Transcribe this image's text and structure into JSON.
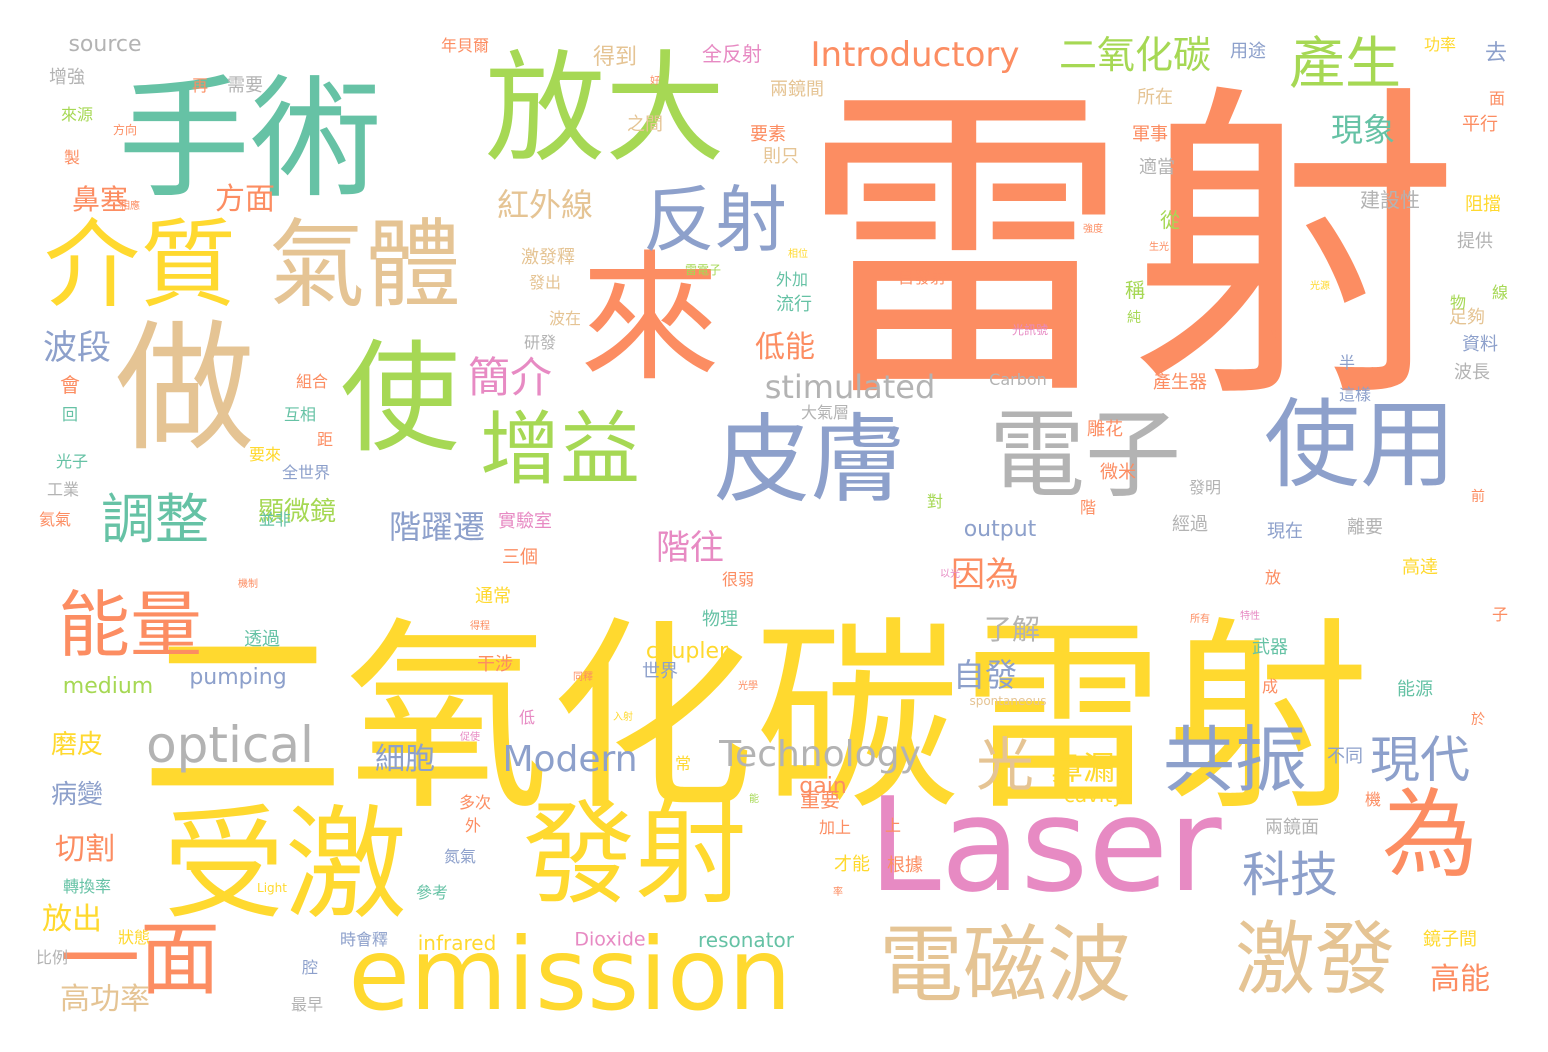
{
  "palette": {
    "orange": "#fc8d62",
    "teal": "#66c2a5",
    "green": "#a6d854",
    "blue": "#8da0cb",
    "pink": "#e78ac3",
    "yellow": "#ffd92f",
    "tan": "#e5c494",
    "gray": "#b3b3b3"
  },
  "words": [
    {
      "text": "雷射",
      "color": "orange",
      "size": 5,
      "v": false
    },
    {
      "text": "二氧化碳雷射",
      "color": "yellow",
      "size": 5,
      "v": false
    },
    {
      "text": "手術",
      "color": "teal",
      "size": 4,
      "v": false
    },
    {
      "text": "放大",
      "color": "green",
      "size": 4,
      "v": false
    },
    {
      "text": "做",
      "color": "tan",
      "size": 4,
      "v": false
    },
    {
      "text": "來",
      "color": "orange",
      "size": 4,
      "v": false
    },
    {
      "text": "使",
      "color": "green",
      "size": 4,
      "v": false
    },
    {
      "text": "介質",
      "color": "yellow",
      "size": 3,
      "v": false
    },
    {
      "text": "氣體",
      "color": "tan",
      "size": 3,
      "v": false
    },
    {
      "text": "受激",
      "color": "yellow",
      "size": 4,
      "v": false
    },
    {
      "text": "發射",
      "color": "yellow",
      "size": 4,
      "v": false
    },
    {
      "text": "皮膚",
      "color": "blue",
      "size": 3,
      "v": false
    },
    {
      "text": "電子",
      "color": "gray",
      "size": 3,
      "v": false
    },
    {
      "text": "使用",
      "color": "blue",
      "size": 3,
      "v": false
    },
    {
      "text": "Laser",
      "color": "pink",
      "size": 4,
      "v": false
    },
    {
      "text": "為",
      "color": "orange",
      "size": 3,
      "v": false
    },
    {
      "text": "emission",
      "color": "yellow",
      "size": 3,
      "v": false
    },
    {
      "text": "電磁波",
      "color": "tan",
      "size": 3,
      "v": false
    },
    {
      "text": "激發",
      "color": "tan",
      "size": 3,
      "v": false
    },
    {
      "text": "一面",
      "color": "orange",
      "size": 3,
      "v": false
    },
    {
      "text": "增益",
      "color": "green",
      "size": 3,
      "v": false
    },
    {
      "text": "能量",
      "color": "orange",
      "size": 3,
      "v": false
    },
    {
      "text": "反射",
      "color": "blue",
      "size": 3,
      "v": false
    },
    {
      "text": "共振",
      "color": "blue",
      "size": 3,
      "v": false
    },
    {
      "text": "optical",
      "color": "gray",
      "size": 2,
      "v": false
    },
    {
      "text": "光",
      "color": "tan",
      "size": 2,
      "v": false
    },
    {
      "text": "現代",
      "color": "blue",
      "size": 2,
      "v": false
    },
    {
      "text": "科技",
      "color": "blue",
      "size": 2,
      "v": false
    },
    {
      "text": "產生",
      "color": "green",
      "size": 2,
      "v": false
    },
    {
      "text": "調整",
      "color": "teal",
      "size": 2,
      "v": false
    },
    {
      "text": "Introductory",
      "color": "orange",
      "size": 1,
      "v": false
    },
    {
      "text": "二氧化碳",
      "color": "green",
      "size": 1,
      "v": false
    },
    {
      "text": "Modern",
      "color": "blue",
      "size": 1,
      "v": false
    },
    {
      "text": "Technology",
      "color": "gray",
      "size": 1,
      "v": false
    },
    {
      "text": "stimulated",
      "color": "gray",
      "size": 1,
      "v": false
    },
    {
      "text": "簡介",
      "color": "pink",
      "size": 1,
      "v": false
    },
    {
      "text": "紅外線",
      "color": "tan",
      "size": 1,
      "v": false
    },
    {
      "text": "方面",
      "color": "orange",
      "size": 1,
      "v": false
    },
    {
      "text": "鼻塞",
      "color": "orange",
      "size": 1,
      "v": false
    },
    {
      "text": "波段",
      "color": "blue",
      "size": 1,
      "v": false
    },
    {
      "text": "低能",
      "color": "orange",
      "size": 1,
      "v": false
    },
    {
      "text": "階躍遷",
      "color": "blue",
      "size": 1,
      "v": false
    },
    {
      "text": "階往",
      "color": "pink",
      "size": 1,
      "v": false
    },
    {
      "text": "因為",
      "color": "orange",
      "size": 1,
      "v": false
    },
    {
      "text": "自發",
      "color": "blue",
      "size": 1,
      "v": false
    },
    {
      "text": "了解",
      "color": "gray",
      "size": 1,
      "v": false
    },
    {
      "text": "鼻漏",
      "color": "yellow",
      "size": 1,
      "v": false
    },
    {
      "text": "現象",
      "color": "teal",
      "size": 1,
      "v": false
    },
    {
      "text": "細胞",
      "color": "blue",
      "size": 1,
      "v": false
    },
    {
      "text": "顯微鏡",
      "color": "green",
      "size": 1,
      "v": false
    },
    {
      "text": "磨皮",
      "color": "yellow",
      "size": 1,
      "v": false
    },
    {
      "text": "病變",
      "color": "blue",
      "size": 1,
      "v": false
    },
    {
      "text": "切割",
      "color": "orange",
      "size": 1,
      "v": false
    },
    {
      "text": "放出",
      "color": "yellow",
      "size": 1,
      "v": false
    },
    {
      "text": "高功率",
      "color": "tan",
      "size": 1,
      "v": false
    },
    {
      "text": "高能",
      "color": "orange",
      "size": 1,
      "v": false
    },
    {
      "text": "source",
      "color": "gray",
      "size": 0,
      "v": false
    },
    {
      "text": "output",
      "color": "blue",
      "size": 0,
      "v": false
    },
    {
      "text": "pumping",
      "color": "blue",
      "size": 0,
      "v": false
    },
    {
      "text": "medium",
      "color": "green",
      "size": 0,
      "v": false
    },
    {
      "text": "coupler",
      "color": "yellow",
      "size": 0,
      "v": false
    },
    {
      "text": "gain",
      "color": "orange",
      "size": 0,
      "v": false
    },
    {
      "text": "cavity",
      "color": "yellow",
      "size": 0,
      "v": false
    },
    {
      "text": "infrared",
      "color": "yellow",
      "size": 0,
      "v": false
    },
    {
      "text": "Dioxide",
      "color": "pink",
      "size": 0,
      "v": false
    },
    {
      "text": "resonator",
      "color": "teal",
      "size": 0,
      "v": false
    },
    {
      "text": "Carbon",
      "color": "gray",
      "size": 0,
      "v": false
    },
    {
      "text": "得到",
      "color": "tan",
      "size": 0,
      "v": false
    },
    {
      "text": "全反射",
      "color": "pink",
      "size": 0,
      "v": false
    },
    {
      "text": "兩鏡間",
      "color": "tan",
      "size": 0,
      "v": false
    },
    {
      "text": "所在",
      "color": "tan",
      "size": 0,
      "v": false
    },
    {
      "text": "軍事",
      "color": "orange",
      "size": 0,
      "v": false
    },
    {
      "text": "適當",
      "color": "gray",
      "size": 0,
      "v": false
    },
    {
      "text": "建設性",
      "color": "gray",
      "size": 0,
      "v": false
    },
    {
      "text": "阻擋",
      "color": "yellow",
      "size": 0,
      "v": false
    },
    {
      "text": "提供",
      "color": "gray",
      "size": 0,
      "v": false
    },
    {
      "text": "足夠",
      "color": "tan",
      "size": 0,
      "v": false
    },
    {
      "text": "資料",
      "color": "blue",
      "size": 0,
      "v": false
    },
    {
      "text": "波長",
      "color": "gray",
      "size": 0,
      "v": false
    },
    {
      "text": "產生器",
      "color": "orange",
      "size": 0,
      "v": false
    },
    {
      "text": "雕花",
      "color": "orange",
      "size": 0,
      "v": false
    },
    {
      "text": "微米",
      "color": "orange",
      "size": 0,
      "v": false
    },
    {
      "text": "發明",
      "color": "gray",
      "size": 0,
      "v": false
    },
    {
      "text": "經過",
      "color": "gray",
      "size": 0,
      "v": false
    },
    {
      "text": "現在",
      "color": "blue",
      "size": 0,
      "v": false
    },
    {
      "text": "離要",
      "color": "gray",
      "size": 0,
      "v": false
    },
    {
      "text": "高達",
      "color": "yellow",
      "size": 0,
      "v": false
    },
    {
      "text": "武器",
      "color": "teal",
      "size": 0,
      "v": false
    },
    {
      "text": "能源",
      "color": "teal",
      "size": 0,
      "v": false
    },
    {
      "text": "不同",
      "color": "blue",
      "size": 0,
      "v": false
    },
    {
      "text": "兩鏡面",
      "color": "gray",
      "size": 0,
      "v": false
    },
    {
      "text": "鏡子間",
      "color": "yellow",
      "size": 0,
      "v": false
    },
    {
      "text": "用途",
      "color": "blue",
      "size": 0,
      "v": false
    },
    {
      "text": "功率",
      "color": "yellow",
      "size": 0,
      "v": false
    },
    {
      "text": "平行",
      "color": "orange",
      "size": 0,
      "v": false
    },
    {
      "text": "要素",
      "color": "orange",
      "size": 0,
      "v": false
    },
    {
      "text": "則只",
      "color": "tan",
      "size": 0,
      "v": false
    },
    {
      "text": "之間",
      "color": "tan",
      "size": 0,
      "v": false
    },
    {
      "text": "外加",
      "color": "teal",
      "size": 0,
      "v": false
    },
    {
      "text": "流行",
      "color": "teal",
      "size": 0,
      "v": false
    },
    {
      "text": "大氣層",
      "color": "gray",
      "size": 0,
      "v": false
    },
    {
      "text": "全世界",
      "color": "blue",
      "size": 0,
      "v": false
    },
    {
      "text": "三個",
      "color": "orange",
      "size": 0,
      "v": false
    },
    {
      "text": "通常",
      "color": "yellow",
      "size": 0,
      "v": false
    },
    {
      "text": "透過",
      "color": "teal",
      "size": 0,
      "v": false
    },
    {
      "text": "干涉",
      "color": "orange",
      "size": 0,
      "v": false
    },
    {
      "text": "很弱",
      "color": "orange",
      "size": 0,
      "v": false
    },
    {
      "text": "物理",
      "color": "teal",
      "size": 0,
      "v": false
    },
    {
      "text": "世界",
      "color": "blue",
      "size": 0,
      "v": false
    },
    {
      "text": "實驗室",
      "color": "pink",
      "size": 0,
      "v": false
    },
    {
      "text": "激發釋",
      "color": "tan",
      "size": 0,
      "v": false
    },
    {
      "text": "發出",
      "color": "tan",
      "size": 0,
      "v": false
    },
    {
      "text": "波在",
      "color": "tan",
      "size": 0,
      "v": false
    },
    {
      "text": "研發",
      "color": "gray",
      "size": 0,
      "v": false
    },
    {
      "text": "組合",
      "color": "orange",
      "size": 0,
      "v": false
    },
    {
      "text": "互相",
      "color": "teal",
      "size": 0,
      "v": false
    },
    {
      "text": "要來",
      "color": "yellow",
      "size": 0,
      "v": false
    },
    {
      "text": "光子",
      "color": "teal",
      "size": 0,
      "v": false
    },
    {
      "text": "工業",
      "color": "gray",
      "size": 0,
      "v": false
    },
    {
      "text": "氦氣",
      "color": "orange",
      "size": 0,
      "v": false
    },
    {
      "text": "並非",
      "color": "teal",
      "size": 0,
      "v": false
    },
    {
      "text": "比例",
      "color": "gray",
      "size": 0,
      "v": false
    },
    {
      "text": "狀態",
      "color": "yellow",
      "size": 0,
      "v": false
    },
    {
      "text": "轉換率",
      "color": "teal",
      "size": 0,
      "v": false
    },
    {
      "text": "時會釋",
      "color": "blue",
      "size": 0,
      "v": false
    },
    {
      "text": "參考",
      "color": "teal",
      "size": 0,
      "v": false
    },
    {
      "text": "氮氣",
      "color": "blue",
      "size": 0,
      "v": false
    },
    {
      "text": "多次",
      "color": "orange",
      "size": 0,
      "v": false
    },
    {
      "text": "重要",
      "color": "orange",
      "size": 0,
      "v": false
    },
    {
      "text": "加上",
      "color": "orange",
      "size": 0,
      "v": false
    },
    {
      "text": "才能",
      "color": "yellow",
      "size": 0,
      "v": false
    },
    {
      "text": "根據",
      "color": "orange",
      "size": 0,
      "v": false
    },
    {
      "text": "最早",
      "color": "gray",
      "size": 0,
      "v": false
    },
    {
      "text": "年貝爾",
      "color": "orange",
      "size": 0,
      "v": false
    },
    {
      "text": "增強",
      "color": "gray",
      "size": 0,
      "v": false
    },
    {
      "text": "再",
      "color": "orange",
      "size": 0,
      "v": false
    },
    {
      "text": "需要",
      "color": "gray",
      "size": 0,
      "v": false
    },
    {
      "text": "來源",
      "color": "green",
      "size": 0,
      "v": false
    },
    {
      "text": "製",
      "color": "orange",
      "size": 0,
      "v": false
    },
    {
      "text": "去",
      "color": "blue",
      "size": 0,
      "v": false
    },
    {
      "text": "從",
      "color": "green",
      "size": 0,
      "v": false
    },
    {
      "text": "稱",
      "color": "green",
      "size": 0,
      "v": false
    },
    {
      "text": "會",
      "color": "orange",
      "size": 0,
      "v": false
    },
    {
      "text": "回",
      "color": "teal",
      "size": 0,
      "v": false
    },
    {
      "text": "距",
      "color": "orange",
      "size": 0,
      "v": false
    },
    {
      "text": "對",
      "color": "green",
      "size": 0,
      "v": false
    },
    {
      "text": "常",
      "color": "yellow",
      "size": 0,
      "v": false
    },
    {
      "text": "成",
      "color": "orange",
      "size": 0,
      "v": false
    },
    {
      "text": "放",
      "color": "orange",
      "size": 0,
      "v": false
    },
    {
      "text": "於",
      "color": "orange",
      "size": 0,
      "v": false
    },
    {
      "text": "前",
      "color": "orange",
      "size": 0,
      "v": false
    },
    {
      "text": "子",
      "color": "orange",
      "size": 0,
      "v": false
    },
    {
      "text": "物",
      "color": "green",
      "size": 0,
      "v": false
    },
    {
      "text": "線",
      "color": "green",
      "size": 0,
      "v": false
    },
    {
      "text": "面",
      "color": "orange",
      "size": 0,
      "v": false
    },
    {
      "text": "低",
      "color": "pink",
      "size": 0,
      "v": false
    },
    {
      "text": "外",
      "color": "orange",
      "size": 0,
      "v": false
    },
    {
      "text": "上",
      "color": "orange",
      "size": 0,
      "v": false
    },
    {
      "text": "腔",
      "color": "blue",
      "size": 0,
      "v": false
    },
    {
      "text": "半",
      "color": "blue",
      "size": 0,
      "v": false
    },
    {
      "text": "階",
      "color": "orange",
      "size": 0,
      "v": false
    },
    {
      "text": "純",
      "color": "green",
      "size": 0,
      "v": false
    },
    {
      "text": "機",
      "color": "orange",
      "size": 0,
      "v": false
    },
    {
      "text": "自發射",
      "color": "orange",
      "size": 0,
      "v": false
    },
    {
      "text": "這樣",
      "color": "blue",
      "size": 0,
      "v": false
    },
    {
      "text": "spontaneous",
      "color": "tan",
      "size": 0,
      "v": false
    },
    {
      "text": "Light",
      "color": "yellow",
      "size": 0,
      "v": false
    },
    {
      "text": "光訊號",
      "color": "pink",
      "size": 0,
      "v": false
    },
    {
      "text": "雷電子",
      "color": "green",
      "size": 0,
      "v": false
    },
    {
      "text": "方向",
      "color": "orange",
      "size": 0,
      "v": false
    },
    {
      "text": "好",
      "color": "orange",
      "size": 0,
      "v": false
    },
    {
      "text": "同釋",
      "color": "orange",
      "size": 0,
      "v": false
    },
    {
      "text": "光學",
      "color": "orange",
      "size": 0,
      "v": false
    },
    {
      "text": "光源",
      "color": "yellow",
      "size": 0,
      "v": false
    },
    {
      "text": "以光",
      "color": "pink",
      "size": 0,
      "v": false
    },
    {
      "text": "強度",
      "color": "orange",
      "size": 0,
      "v": false
    },
    {
      "text": "相應",
      "color": "orange",
      "size": 0,
      "v": false
    },
    {
      "text": "生光",
      "color": "orange",
      "size": 0,
      "v": false
    },
    {
      "text": "相位",
      "color": "yellow",
      "size": 0,
      "v": false
    },
    {
      "text": "率",
      "color": "orange",
      "size": 0,
      "v": false
    },
    {
      "text": "年",
      "color": "orange",
      "size": 0,
      "v": false
    },
    {
      "text": "能",
      "color": "green",
      "size": 0,
      "v": false
    },
    {
      "text": "所有",
      "color": "orange",
      "size": 0,
      "v": false
    },
    {
      "text": "特性",
      "color": "pink",
      "size": 0,
      "v": false
    },
    {
      "text": "機制",
      "color": "orange",
      "size": 0,
      "v": false
    },
    {
      "text": "得程",
      "color": "orange",
      "size": 0,
      "v": false
    },
    {
      "text": "促使",
      "color": "pink",
      "size": 0,
      "v": false
    },
    {
      "text": "入射",
      "color": "yellow",
      "size": 0,
      "v": false
    }
  ]
}
